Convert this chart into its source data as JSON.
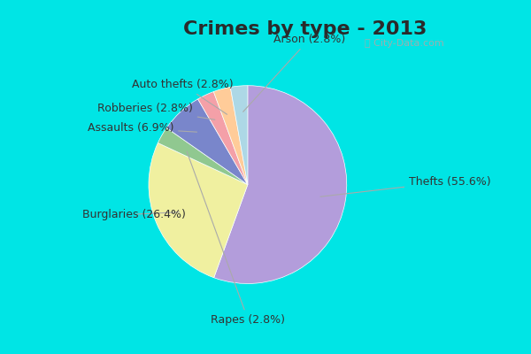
{
  "title": "Crimes by type - 2013",
  "labels": [
    "Thefts",
    "Burglaries",
    "Rapes",
    "Assaults",
    "Robberies",
    "Auto thefts",
    "Arson"
  ],
  "display_labels": [
    "Thefts (55.6%)",
    "Burglaries (26.4%)",
    "Rapes (2.8%)",
    "Assaults (6.9%)",
    "Robberies (2.8%)",
    "Auto thefts (2.8%)",
    "Arson (2.8%)"
  ],
  "values": [
    55.6,
    26.4,
    2.8,
    6.9,
    2.8,
    2.8,
    2.8
  ],
  "colors": [
    "#b39ddb",
    "#f0f0a0",
    "#90c890",
    "#7986cb",
    "#f4a0a8",
    "#ffcc99",
    "#add8e6"
  ],
  "border_color": "#00e5e5",
  "bg_color": "#e0f0e8",
  "title_fontsize": 16,
  "label_fontsize": 9,
  "startangle": 90,
  "border_thickness": 8
}
